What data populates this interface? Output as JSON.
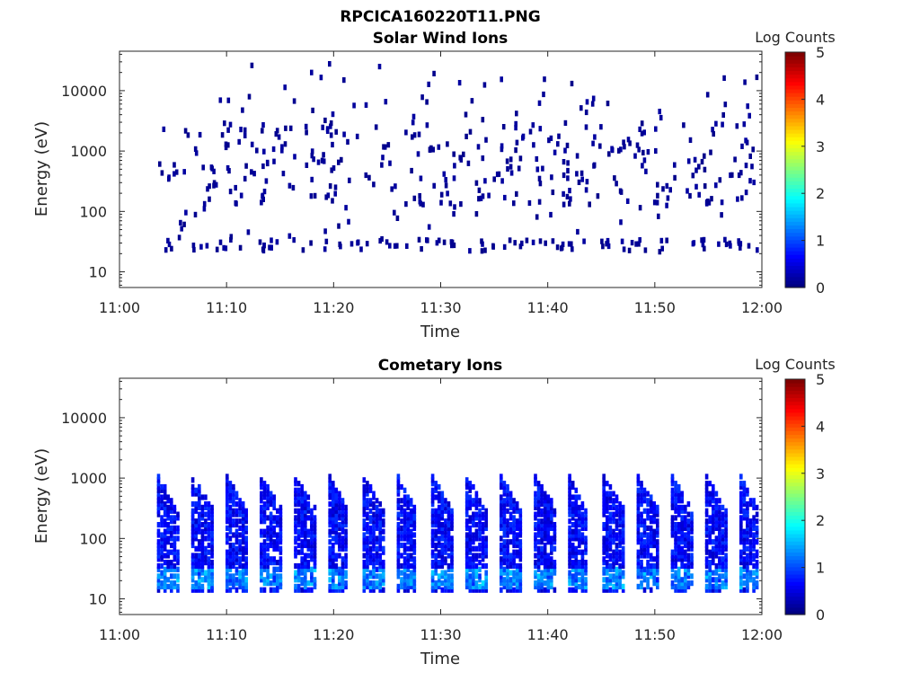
{
  "figure": {
    "title": "RPCICA160220T11.PNG"
  },
  "chart_data": [
    {
      "type": "heatmap",
      "title": "Solar Wind Ions",
      "xlabel": "Time",
      "ylabel": "Energy (eV)",
      "x_ticks": [
        "11:00",
        "11:10",
        "11:20",
        "11:30",
        "11:40",
        "11:50",
        "12:00"
      ],
      "x_range_min": [
        0,
        60
      ],
      "y_ticks": [
        "10",
        "100",
        "1000",
        "10000"
      ],
      "y_tick_values": [
        10,
        100,
        1000,
        10000
      ],
      "y_range_ev": [
        5.5,
        45000
      ],
      "y_scale": "log",
      "colorbar": {
        "label": "Log Counts",
        "ticks": [
          "0",
          "1",
          "2",
          "3",
          "4",
          "5"
        ],
        "range": [
          0,
          5
        ],
        "colormap": "jet"
      },
      "pattern": "sparse"
    },
    {
      "type": "heatmap",
      "title": "Cometary Ions",
      "xlabel": "Time",
      "ylabel": "Energy (eV)",
      "x_ticks": [
        "11:00",
        "11:10",
        "11:20",
        "11:30",
        "11:40",
        "11:50",
        "12:00"
      ],
      "x_range_min": [
        0,
        60
      ],
      "y_ticks": [
        "10",
        "100",
        "1000",
        "10000"
      ],
      "y_tick_values": [
        10,
        100,
        1000,
        10000
      ],
      "y_range_ev": [
        5.5,
        45000
      ],
      "y_scale": "log",
      "colorbar": {
        "label": "Log Counts",
        "ticks": [
          "0",
          "1",
          "2",
          "3",
          "4",
          "5"
        ],
        "range": [
          0,
          5
        ],
        "colormap": "jet"
      },
      "pattern": "periodic-bursts",
      "burst_period_min": 3.2,
      "burst_start_min": 3.5
    }
  ]
}
